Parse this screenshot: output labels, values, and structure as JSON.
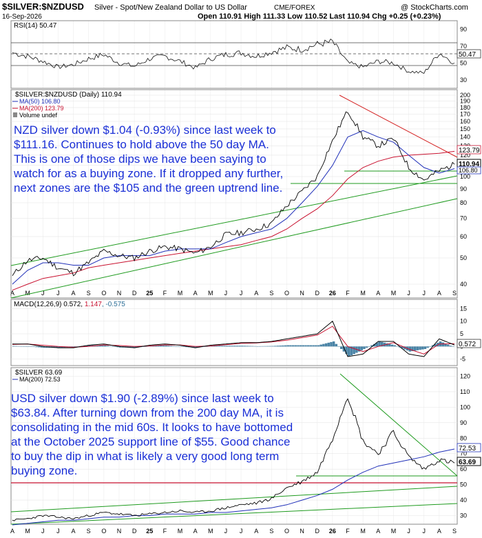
{
  "header": {
    "title_symbol": "$SILVER:$NZDUSD",
    "title_desc": "Silver - Spot/New Zealand Dollar to US Dollar",
    "exchange": "CME/FOREX",
    "copyright": "@ StockCharts.com",
    "date": "16-Sep-2026",
    "ohlc": "Open 110.91  High 111.33  Low 110.52  Last 110.94  Chg +0.25 (+0.23%)"
  },
  "rsi_panel": {
    "label": "RSI(14) 50.47",
    "last_value_tag": "50.47",
    "ticks": [
      "90",
      "70",
      "50",
      "30"
    ]
  },
  "nzd_panel": {
    "legend_main": "$SILVER:$NZDUSD (Daily) 110.94",
    "legend_ma50": "MA(50) 106.80",
    "legend_ma200": "MA(200) 123.79",
    "legend_volume": "Volume undef",
    "tag_ma200": "123.79",
    "tag_last": "110.94",
    "tag_ma50": "106.80",
    "ticks": [
      "200",
      "190",
      "180",
      "170",
      "160",
      "150",
      "140",
      "130",
      "120",
      "110",
      "100",
      "90",
      "80",
      "70",
      "60",
      "50",
      "40"
    ],
    "annotation": "NZD silver down $1.04 (-0.93%) since last week to $111.16. Continues to hold above the 50 day MA. This is one of those dips we have been saying to watch for as a buying zone. If it dropped any further, next zones are the $105 and the green uptrend line."
  },
  "macd_panel": {
    "label_prefix": "MACD(12,26,9) 0.572, ",
    "label_signal": "1.147",
    "label_hist": ", -0.575",
    "tag_value": "0.572",
    "ticks": [
      "15",
      "10",
      "5",
      "0",
      "-5"
    ]
  },
  "usd_panel": {
    "legend_main": "$SILVER 63.69",
    "legend_ma200": "MA(200) 72.53",
    "tag_ma200": "72.53",
    "tag_last": "63.69",
    "ticks": [
      "120",
      "110",
      "100",
      "90",
      "80",
      "70",
      "60",
      "50",
      "40",
      "30"
    ],
    "annotation": "USD silver down $1.90 (-2.89%) since last week to $63.84. After turning down from the 200 day MA, it is consolidating in the mid 60s. It looks to have bottomed at the October 2025 support line of $55. Good chance to buy the dip in what is likely a very good long term buying zone."
  },
  "x_axis": {
    "labels": [
      "A",
      "M",
      "J",
      "J",
      "A",
      "S",
      "O",
      "N",
      "D",
      "25",
      "F",
      "M",
      "A",
      "M",
      "J",
      "J",
      "A",
      "S",
      "O",
      "N",
      "D",
      "26",
      "F",
      "M",
      "A",
      "M",
      "J",
      "J",
      "A",
      "S"
    ]
  },
  "colors": {
    "price": "#000000",
    "ma50": "#1f2fb8",
    "ma200": "#c8102e",
    "trend_green": "#1d9a1d",
    "resistance_red": "#d42020",
    "annotation_blue": "#1a2fd6",
    "histogram": "#2c6e96"
  },
  "chart_data": [
    {
      "type": "line",
      "title": "$SILVER:$NZDUSD (Daily)",
      "x": [
        "2024-04",
        "2024-05",
        "2024-06",
        "2024-07",
        "2024-08",
        "2024-09",
        "2024-10",
        "2024-11",
        "2024-12",
        "2025-01",
        "2025-02",
        "2025-03",
        "2025-04",
        "2025-05",
        "2025-06",
        "2025-07",
        "2025-08",
        "2025-09",
        "2025-10",
        "2025-11",
        "2025-12",
        "2026-01",
        "2026-02",
        "2026-03",
        "2026-04",
        "2026-05",
        "2026-06",
        "2026-07",
        "2026-08",
        "2026-09"
      ],
      "series": [
        {
          "name": "$SILVER:$NZDUSD",
          "values": [
            43,
            49,
            50,
            46,
            44,
            48,
            53,
            51,
            50,
            53,
            55,
            54,
            52,
            55,
            61,
            62,
            64,
            67,
            78,
            88,
            100,
            135,
            175,
            140,
            130,
            138,
            108,
            97,
            105,
            111
          ]
        },
        {
          "name": "MA(50)",
          "values": [
            40,
            45,
            48,
            48,
            47,
            47,
            50,
            51,
            51,
            51,
            53,
            54,
            54,
            54,
            57,
            60,
            62,
            64,
            70,
            80,
            92,
            110,
            140,
            148,
            140,
            134,
            120,
            108,
            103,
            107
          ]
        },
        {
          "name": "MA(200)",
          "values": [
            38,
            40,
            42,
            43,
            44,
            46,
            47,
            48,
            49,
            50,
            51,
            52,
            53,
            54,
            55,
            56,
            58,
            60,
            64,
            70,
            76,
            85,
            98,
            108,
            114,
            118,
            120,
            121,
            122,
            124
          ]
        }
      ],
      "ylim": [
        40,
        200
      ],
      "log_scale": true
    },
    {
      "type": "line",
      "title": "$SILVER",
      "x": [
        "2024-04",
        "2024-05",
        "2024-06",
        "2024-07",
        "2024-08",
        "2024-09",
        "2024-10",
        "2024-11",
        "2024-12",
        "2025-01",
        "2025-02",
        "2025-03",
        "2025-04",
        "2025-05",
        "2025-06",
        "2025-07",
        "2025-08",
        "2025-09",
        "2025-10",
        "2025-11",
        "2025-12",
        "2026-01",
        "2026-02",
        "2026-03",
        "2026-04",
        "2026-05",
        "2026-06",
        "2026-07",
        "2026-08",
        "2026-09"
      ],
      "series": [
        {
          "name": "$SILVER",
          "values": [
            27,
            28,
            30,
            29,
            28,
            30,
            32,
            31,
            30,
            31,
            32,
            33,
            32,
            33,
            35,
            37,
            38,
            41,
            48,
            52,
            58,
            80,
            108,
            78,
            70,
            84,
            68,
            60,
            66,
            64
          ]
        },
        {
          "name": "MA(200)",
          "values": [
            24,
            25,
            26,
            27,
            27,
            28,
            29,
            29,
            30,
            30,
            31,
            31,
            31,
            32,
            32,
            33,
            34,
            35,
            37,
            40,
            43,
            47,
            53,
            58,
            62,
            64,
            66,
            68,
            71,
            73
          ]
        }
      ],
      "ylim": [
        28,
        122
      ]
    },
    {
      "type": "line",
      "title": "RSI(14)",
      "x": [
        "2024-04",
        "2024-05",
        "2024-06",
        "2024-07",
        "2024-08",
        "2024-09",
        "2024-10",
        "2024-11",
        "2024-12",
        "2025-01",
        "2025-02",
        "2025-03",
        "2025-04",
        "2025-05",
        "2025-06",
        "2025-07",
        "2025-08",
        "2025-09",
        "2025-10",
        "2025-11",
        "2025-12",
        "2026-01",
        "2026-02",
        "2026-03",
        "2026-04",
        "2026-05",
        "2026-06",
        "2026-07",
        "2026-08",
        "2026-09"
      ],
      "series": [
        {
          "name": "RSI(14)",
          "values": [
            62,
            58,
            52,
            45,
            48,
            55,
            60,
            50,
            46,
            55,
            58,
            52,
            44,
            55,
            60,
            62,
            58,
            63,
            68,
            66,
            72,
            75,
            50,
            45,
            52,
            50,
            40,
            38,
            62,
            50
          ]
        }
      ],
      "ylim": [
        20,
        100
      ]
    },
    {
      "type": "line",
      "title": "MACD(12,26,9)",
      "x": [
        "2024-04",
        "2024-05",
        "2024-06",
        "2024-07",
        "2024-08",
        "2024-09",
        "2024-10",
        "2024-11",
        "2024-12",
        "2025-01",
        "2025-02",
        "2025-03",
        "2025-04",
        "2025-05",
        "2025-06",
        "2025-07",
        "2025-08",
        "2025-09",
        "2025-10",
        "2025-11",
        "2025-12",
        "2026-01",
        "2026-02",
        "2026-03",
        "2026-04",
        "2026-05",
        "2026-06",
        "2026-07",
        "2026-08",
        "2026-09"
      ],
      "series": [
        {
          "name": "MACD",
          "values": [
            1,
            1,
            0,
            -0.5,
            -0.5,
            0.5,
            1,
            0,
            -0.5,
            0.5,
            1,
            0.5,
            -0.5,
            0.5,
            1,
            1.5,
            1.5,
            2,
            3,
            4,
            5,
            10,
            -4,
            -3,
            2,
            2,
            -3,
            -4,
            3,
            0.6
          ]
        },
        {
          "name": "Signal",
          "values": [
            0.8,
            1,
            0.5,
            0,
            -0.3,
            0,
            0.6,
            0.4,
            0,
            0.2,
            0.6,
            0.6,
            0,
            0.2,
            0.7,
            1.2,
            1.4,
            1.8,
            2.5,
            3.5,
            4.5,
            8,
            0,
            -2,
            0,
            1.5,
            -1,
            -3,
            1,
            1.1
          ]
        }
      ],
      "ylim": [
        -7,
        17
      ]
    }
  ]
}
